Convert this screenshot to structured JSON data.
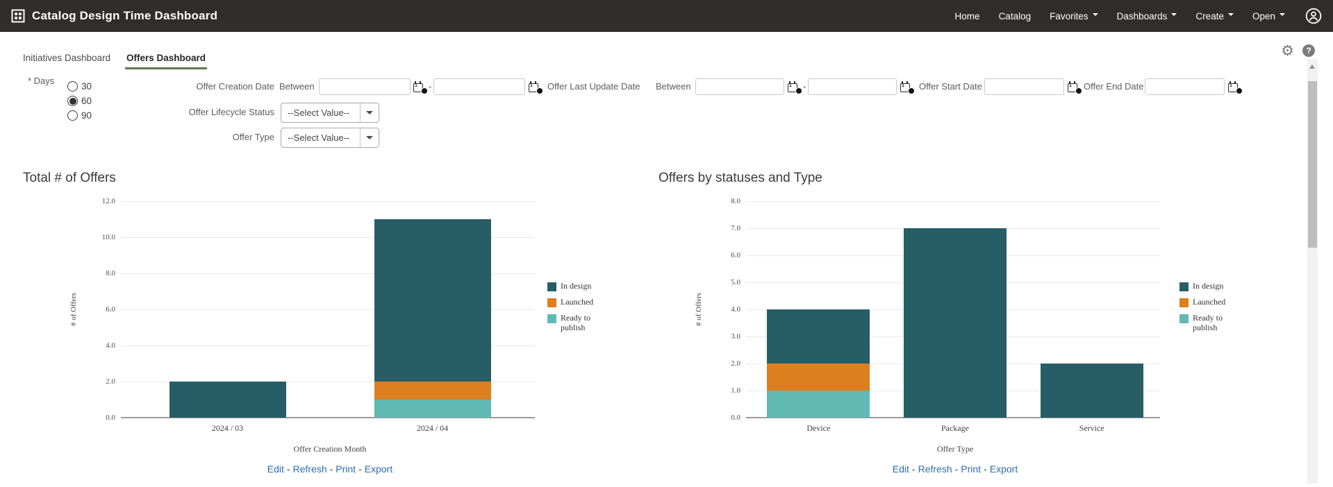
{
  "topbar": {
    "title": "Catalog Design Time Dashboard",
    "nav": [
      {
        "label": "Home",
        "caret": false
      },
      {
        "label": "Catalog",
        "caret": false
      },
      {
        "label": "Favorites",
        "caret": true
      },
      {
        "label": "Dashboards",
        "caret": true
      },
      {
        "label": "Create",
        "caret": true
      },
      {
        "label": "Open",
        "caret": true
      }
    ]
  },
  "tabs": [
    {
      "label": "Initiatives Dashboard",
      "active": false
    },
    {
      "label": "Offers Dashboard",
      "active": true
    }
  ],
  "icons": {
    "gear": "⚙",
    "help": "?"
  },
  "filters": {
    "days": {
      "label": "* Days",
      "options": [
        {
          "label": "30",
          "selected": false
        },
        {
          "label": "60",
          "selected": true
        },
        {
          "label": "90",
          "selected": false
        }
      ]
    },
    "offer_creation_date": {
      "label": "Offer Creation Date",
      "between": "Between",
      "from": "",
      "to": "",
      "separator": "-"
    },
    "offer_last_update_date": {
      "label": "Offer Last Update Date",
      "between": "Between",
      "from": "",
      "to": "",
      "separator": "-"
    },
    "offer_start_date": {
      "label": "Offer Start Date",
      "value": ""
    },
    "offer_end_date": {
      "label": "Offer End Date",
      "value": ""
    },
    "offer_lifecycle_status": {
      "label": "Offer Lifecycle Status",
      "value": "--Select Value--"
    },
    "offer_type": {
      "label": "Offer Type",
      "value": "--Select Value--"
    }
  },
  "colors": {
    "in_design": "#265d66",
    "launched": "#dd7e1f",
    "ready_to_publish": "#60b9b3",
    "link": "#2a6db3",
    "tab_underline": "#5d7a50",
    "topbar_bg": "#312d2a"
  },
  "chart_data": [
    {
      "type": "bar",
      "stacked": true,
      "title": "Total # of Offers",
      "categories": [
        "2024 / 03",
        "2024 / 04"
      ],
      "series": [
        {
          "name": "Ready to publish",
          "color": "#60b9b3",
          "values": [
            0,
            1
          ]
        },
        {
          "name": "Launched",
          "color": "#dd7e1f",
          "values": [
            0,
            1
          ]
        },
        {
          "name": "In design",
          "color": "#265d66",
          "values": [
            2,
            9
          ]
        }
      ],
      "totals": [
        2,
        11
      ],
      "xlabel": "Offer Creation Month",
      "ylabel": "# of Offers",
      "ylim": [
        0,
        12
      ],
      "ytick_step": 2,
      "legend_position": "right",
      "grid": true,
      "links": [
        "Edit",
        "Refresh",
        "Print",
        "Export"
      ],
      "links_separator": "-"
    },
    {
      "type": "bar",
      "stacked": true,
      "title": "Offers by statuses and Type",
      "categories": [
        "Device",
        "Package",
        "Service"
      ],
      "series": [
        {
          "name": "Ready to publish",
          "color": "#60b9b3",
          "values": [
            1,
            0,
            0
          ]
        },
        {
          "name": "Launched",
          "color": "#dd7e1f",
          "values": [
            1,
            0,
            0
          ]
        },
        {
          "name": "In design",
          "color": "#265d66",
          "values": [
            2,
            7,
            2
          ]
        }
      ],
      "totals": [
        4,
        7,
        2
      ],
      "xlabel": "Offer Type",
      "ylabel": "# of Offers",
      "ylim": [
        0,
        8
      ],
      "ytick_step": 1,
      "legend_position": "right",
      "grid": true,
      "links": [
        "Edit",
        "Refresh",
        "Print",
        "Export"
      ],
      "links_separator": "-"
    }
  ]
}
